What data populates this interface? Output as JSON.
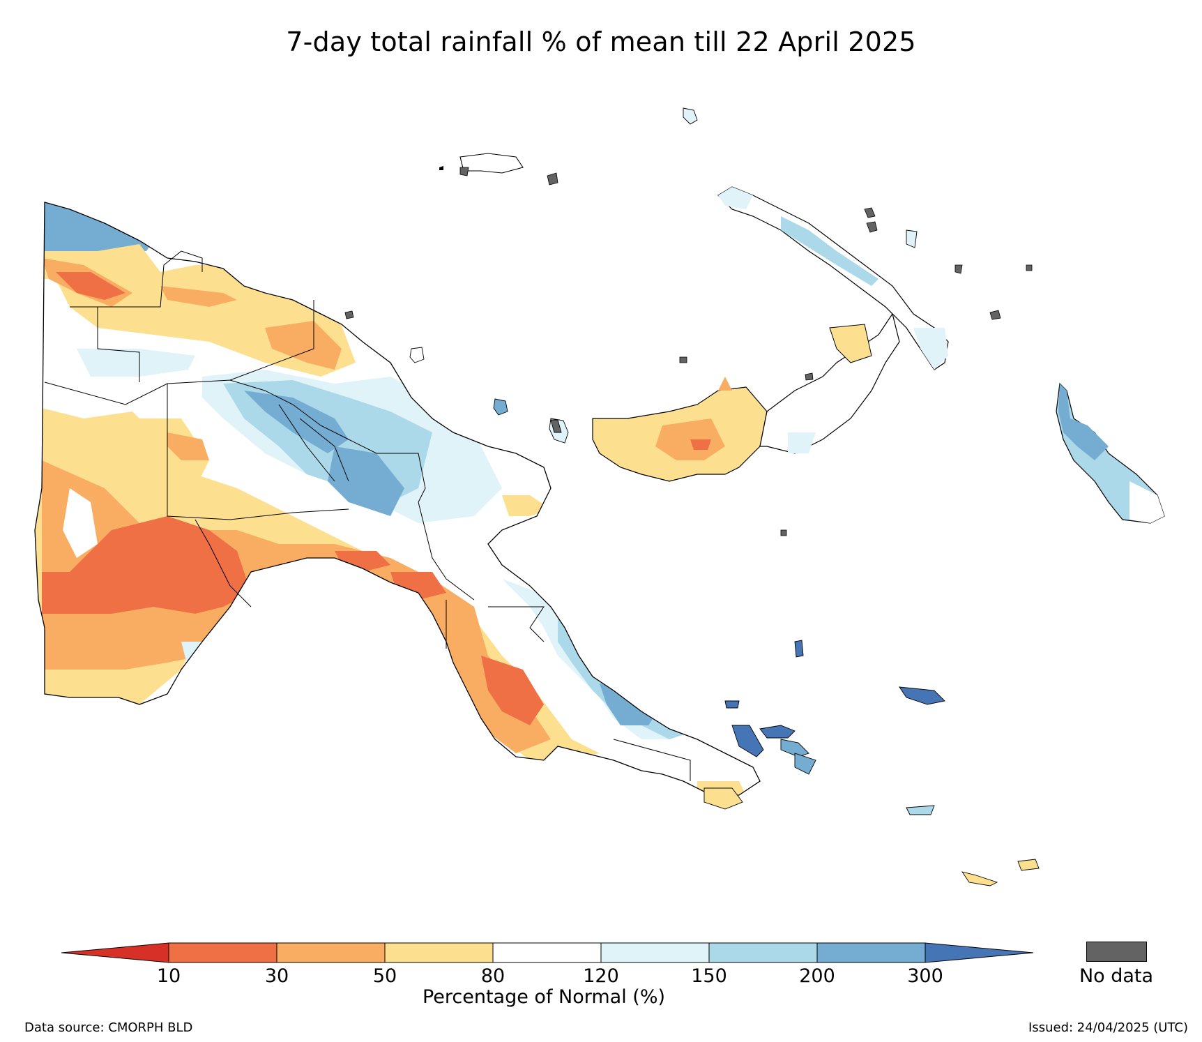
{
  "title": "7-day total rainfall % of mean till 22 April 2025",
  "legend": {
    "axis_label": "Percentage of Normal (%)",
    "ticks": [
      "10",
      "30",
      "50",
      "80",
      "120",
      "150",
      "200",
      "300"
    ],
    "categories": [
      {
        "range": "<10",
        "color": "#d73027"
      },
      {
        "range": "10-30",
        "color": "#f07046"
      },
      {
        "range": "30-50",
        "color": "#f9ad62"
      },
      {
        "range": "50-80",
        "color": "#fde08f"
      },
      {
        "range": "80-120",
        "color": "#ffffff"
      },
      {
        "range": "120-150",
        "color": "#e0f3f8"
      },
      {
        "range": "150-200",
        "color": "#abd9e9"
      },
      {
        "range": "200-300",
        "color": "#74add1"
      },
      {
        "range": ">300",
        "color": "#4575b4"
      }
    ],
    "no_data_label": "No data",
    "no_data_color": "#636363"
  },
  "footer": {
    "source": "Data source: CMORPH BLD",
    "issued": "Issued: 24/04/2025 (UTC)"
  }
}
